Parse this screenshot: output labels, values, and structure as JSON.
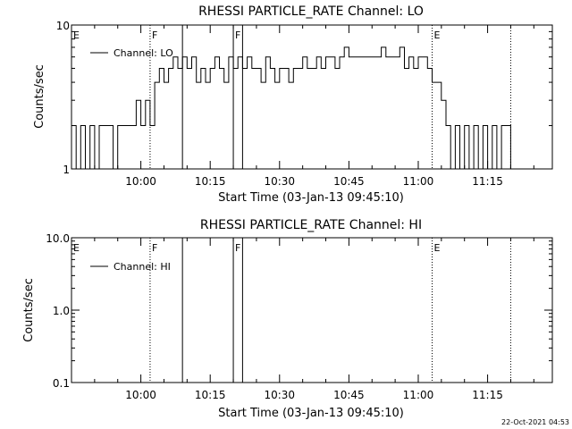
{
  "footer": {
    "timestamp": "22-Oct-2021 04:53"
  },
  "chart_data": [
    {
      "type": "line",
      "title": "RHESSI PARTICLE_RATE Channel: LO",
      "xlabel": "Start Time (03-Jan-13 09:45:10)",
      "ylabel": "Counts/sec",
      "yscale": "log",
      "ylim": [
        1,
        10
      ],
      "xlim_minutes": [
        0,
        104
      ],
      "x_ticks": [
        {
          "minute": 15,
          "label": "10:00"
        },
        {
          "minute": 30,
          "label": "10:15"
        },
        {
          "minute": 45,
          "label": "10:30"
        },
        {
          "minute": 60,
          "label": "10:45"
        },
        {
          "minute": 75,
          "label": "11:00"
        },
        {
          "minute": 90,
          "label": "11:15"
        }
      ],
      "y_ticks": [
        {
          "value": 1,
          "label": "1"
        },
        {
          "value": 10,
          "label": "10"
        }
      ],
      "legend": {
        "placement": "top-left",
        "entries": [
          "Channel: LO"
        ]
      },
      "markers": [
        {
          "label": "E",
          "minute": 0,
          "style": "none"
        },
        {
          "label": "F",
          "minute": 17,
          "style": "dotted"
        },
        {
          "label": "",
          "minute": 24,
          "style": "solid"
        },
        {
          "label": "F",
          "minute": 35,
          "style": "solid"
        },
        {
          "label": "",
          "minute": 37,
          "style": "solid"
        },
        {
          "label": "E",
          "minute": 78,
          "style": "dotted"
        },
        {
          "label": "",
          "minute": 95,
          "style": "dotted"
        }
      ],
      "series": [
        {
          "name": "Channel: LO",
          "x": [
            0,
            1,
            2,
            3,
            4,
            5,
            6,
            7,
            8,
            9,
            10,
            11,
            12,
            13,
            14,
            15,
            16,
            17,
            18,
            19,
            20,
            21,
            22,
            23,
            24,
            25,
            26,
            27,
            28,
            29,
            30,
            31,
            32,
            33,
            34,
            35,
            36,
            37,
            38,
            39,
            40,
            41,
            42,
            43,
            44,
            45,
            46,
            47,
            48,
            49,
            50,
            51,
            52,
            53,
            54,
            55,
            56,
            57,
            58,
            59,
            60,
            61,
            62,
            63,
            64,
            65,
            66,
            67,
            68,
            69,
            70,
            71,
            72,
            73,
            74,
            75,
            76,
            77,
            78,
            79,
            80,
            81,
            82,
            83,
            84,
            85,
            86,
            87,
            88,
            89,
            90,
            91,
            92,
            93,
            94,
            95
          ],
          "values": [
            2,
            1,
            2,
            1,
            2,
            1,
            2,
            2,
            2,
            1,
            2,
            2,
            2,
            2,
            3,
            2,
            3,
            2,
            4,
            5,
            4,
            5,
            6,
            5,
            6,
            5,
            6,
            4,
            5,
            4,
            5,
            6,
            5,
            4,
            6,
            5,
            6,
            5,
            6,
            5,
            5,
            4,
            6,
            5,
            4,
            5,
            5,
            4,
            5,
            5,
            6,
            5,
            5,
            6,
            5,
            6,
            6,
            5,
            6,
            7,
            6,
            6,
            6,
            6,
            6,
            6,
            6,
            7,
            6,
            6,
            6,
            7,
            5,
            6,
            5,
            6,
            6,
            5,
            4,
            4,
            3,
            2,
            1,
            2,
            1,
            2,
            1,
            2,
            1,
            2,
            1,
            2,
            1,
            2,
            2,
            1
          ]
        }
      ]
    },
    {
      "type": "line",
      "title": "RHESSI PARTICLE_RATE Channel: HI",
      "xlabel": "Start Time (03-Jan-13 09:45:10)",
      "ylabel": "Counts/sec",
      "yscale": "log",
      "ylim": [
        0.1,
        10
      ],
      "xlim_minutes": [
        0,
        104
      ],
      "x_ticks": [
        {
          "minute": 15,
          "label": "10:00"
        },
        {
          "minute": 30,
          "label": "10:15"
        },
        {
          "minute": 45,
          "label": "10:30"
        },
        {
          "minute": 60,
          "label": "10:45"
        },
        {
          "minute": 75,
          "label": "11:00"
        },
        {
          "minute": 90,
          "label": "11:15"
        }
      ],
      "y_ticks": [
        {
          "value": 0.1,
          "label": "0.1"
        },
        {
          "value": 1,
          "label": "1.0"
        },
        {
          "value": 10,
          "label": "10.0"
        }
      ],
      "legend": {
        "placement": "top-left",
        "entries": [
          "Channel: HI"
        ]
      },
      "markers": [
        {
          "label": "E",
          "minute": 0,
          "style": "none"
        },
        {
          "label": "F",
          "minute": 17,
          "style": "dotted"
        },
        {
          "label": "",
          "minute": 24,
          "style": "solid"
        },
        {
          "label": "F",
          "minute": 35,
          "style": "solid"
        },
        {
          "label": "",
          "minute": 37,
          "style": "solid"
        },
        {
          "label": "E",
          "minute": 78,
          "style": "dotted"
        },
        {
          "label": "",
          "minute": 95,
          "style": "dotted"
        }
      ],
      "series": [
        {
          "name": "Channel: HI",
          "x": [],
          "values": []
        }
      ]
    }
  ]
}
